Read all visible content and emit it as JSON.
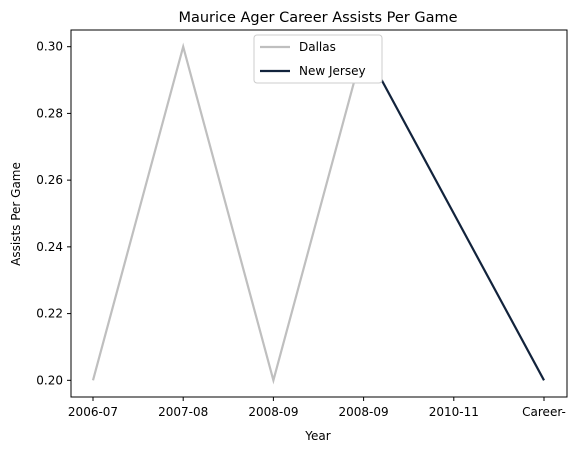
{
  "chart_data": {
    "type": "line",
    "title": "Maurice Ager Career Assists Per Game",
    "xlabel": "Year",
    "ylabel": "Assists Per Game",
    "categories": [
      "2006-07",
      "2007-08",
      "2008-09",
      "2008-09",
      "2010-11",
      "Career-"
    ],
    "ylim": [
      0.195,
      0.305
    ],
    "yticks": [
      0.2,
      0.22,
      0.24,
      0.26,
      0.28,
      0.3
    ],
    "ytick_labels": [
      "0.20",
      "0.22",
      "0.24",
      "0.26",
      "0.28",
      "0.30"
    ],
    "grid": false,
    "legend_position": "top-center",
    "series": [
      {
        "name": "Dallas",
        "color": "#bfbfbf",
        "values": [
          0.2,
          0.3,
          0.2,
          0.3,
          null,
          null
        ]
      },
      {
        "name": "New Jersey",
        "color": "#12233c",
        "values": [
          null,
          null,
          null,
          0.3,
          null,
          0.2
        ]
      }
    ]
  }
}
